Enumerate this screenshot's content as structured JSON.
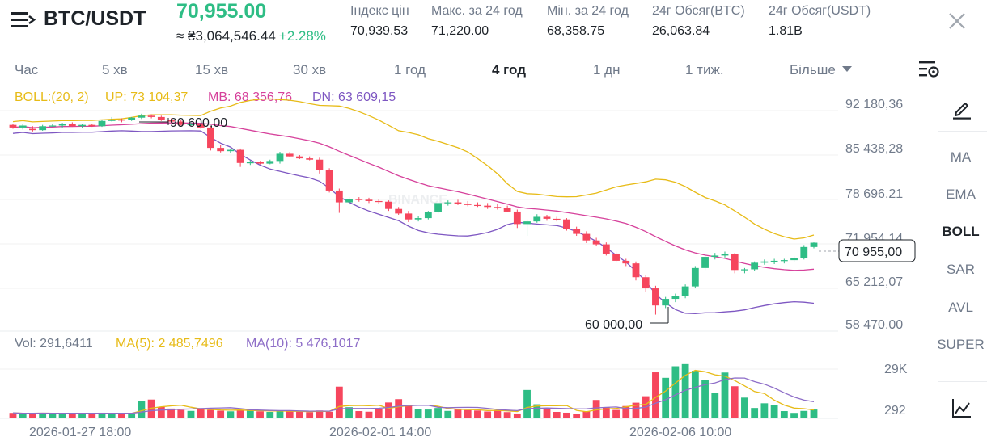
{
  "header": {
    "pair": "BTC/USDT",
    "last_price": "70,955.00",
    "fiat_price": "≈ ₴3,064,546.44",
    "change_pct": "+2.28%",
    "stats": [
      {
        "label": "Індекс цін",
        "value": "70,939.53"
      },
      {
        "label": "Макс. за 24 год",
        "value": "71,220.00"
      },
      {
        "label": "Мін. за 24 год",
        "value": "68,358.75"
      },
      {
        "label": "24г Обсяг(BTC)",
        "value": "26,063.84"
      },
      {
        "label": "24г Обсяг(USDT)",
        "value": "1.81B"
      }
    ]
  },
  "timeframes": [
    {
      "label": "Час",
      "active": false
    },
    {
      "label": "5 хв",
      "active": false
    },
    {
      "label": "15 хв",
      "active": false
    },
    {
      "label": "30 хв",
      "active": false
    },
    {
      "label": "1 год",
      "active": false
    },
    {
      "label": "4 год",
      "active": true
    },
    {
      "label": "1 дн",
      "active": false
    },
    {
      "label": "1 тиж.",
      "active": false
    }
  ],
  "more_label": "Більше",
  "indicators": [
    {
      "label": "MA",
      "active": false
    },
    {
      "label": "EMA",
      "active": false
    },
    {
      "label": "BOLL",
      "active": true
    },
    {
      "label": "SAR",
      "active": false
    },
    {
      "label": "AVL",
      "active": false
    },
    {
      "label": "SUPER",
      "active": false
    }
  ],
  "boll_legend": {
    "title": "BOLL:(20, 2)",
    "up": "UP: 73 104,37",
    "mb": "MB: 68 356,76",
    "dn": "DN: 63 609,15"
  },
  "vol_legend": {
    "vol": "Vol: 291,6411",
    "ma5": "MA(5): 2 485,7496",
    "ma10": "MA(10): 5 476,1017"
  },
  "price_axis": [
    "92 180,36",
    "85 438,28",
    "78 696,21",
    "71 954,14",
    "65 212,07",
    "58 470,00"
  ],
  "volume_axis": [
    "29K",
    "292"
  ],
  "time_axis": [
    "2026-01-27 18:00",
    "2026-02-01 14:00",
    "2026-02-06 10:00"
  ],
  "current_price_tag": "70 955,00",
  "high_marker": "90 600,00",
  "low_marker": "60 000,00",
  "watermark": "BINANCE",
  "colors": {
    "up": "#2ebd85",
    "down": "#f6465d",
    "boll_up": "#e7bb17",
    "boll_mb": "#d6419b",
    "boll_dn": "#7e57c2",
    "ma5": "#e7bb17",
    "ma10": "#8e6ec8"
  },
  "chart_data": {
    "type": "candlestick",
    "timeframe": "4 год",
    "price_range": [
      58470,
      92180.36
    ],
    "candles": [
      [
        88900,
        89100,
        88300,
        88500
      ],
      [
        88500,
        89000,
        88200,
        88800
      ],
      [
        88300,
        88700,
        87900,
        88100
      ],
      [
        88100,
        88900,
        88000,
        88700
      ],
      [
        88700,
        89100,
        88600,
        88800
      ],
      [
        88800,
        89200,
        88500,
        89000
      ],
      [
        89000,
        89300,
        88600,
        88700
      ],
      [
        88700,
        89000,
        88500,
        88900
      ],
      [
        88900,
        89100,
        88600,
        88700
      ],
      [
        88700,
        89700,
        88600,
        89500
      ],
      [
        89500,
        90100,
        89400,
        89700
      ],
      [
        89700,
        89900,
        89300,
        89600
      ],
      [
        89600,
        90100,
        89500,
        90000
      ],
      [
        90000,
        90600,
        89800,
        90300
      ],
      [
        90300,
        90500,
        89900,
        90100
      ],
      [
        90100,
        90300,
        89500,
        89700
      ],
      [
        89700,
        89900,
        89200,
        89400
      ],
      [
        89400,
        89600,
        88800,
        88900
      ],
      [
        88900,
        89300,
        88700,
        89000
      ],
      [
        89000,
        89200,
        88300,
        88500
      ],
      [
        88500,
        88700,
        85000,
        85400
      ],
      [
        85400,
        85800,
        84700,
        84900
      ],
      [
        84900,
        85300,
        84600,
        85100
      ],
      [
        85100,
        85300,
        82500,
        83100
      ],
      [
        83100,
        83500,
        82800,
        83200
      ],
      [
        83200,
        83400,
        82900,
        83000
      ],
      [
        83000,
        83600,
        82900,
        83400
      ],
      [
        83400,
        84800,
        83000,
        84500
      ],
      [
        84500,
        84800,
        84000,
        84100
      ],
      [
        84100,
        84300,
        83700,
        83800
      ],
      [
        83800,
        84100,
        83500,
        83600
      ],
      [
        83600,
        83900,
        81500,
        82000
      ],
      [
        82000,
        82300,
        78600,
        78900
      ],
      [
        78900,
        79200,
        75500,
        77100
      ],
      [
        77100,
        77900,
        76700,
        77600
      ],
      [
        77600,
        77900,
        77200,
        77500
      ],
      [
        77500,
        77800,
        77000,
        77300
      ],
      [
        77300,
        77600,
        76900,
        77200
      ],
      [
        77200,
        77400,
        75800,
        76100
      ],
      [
        76100,
        76400,
        75200,
        75400
      ],
      [
        75400,
        75800,
        74100,
        74500
      ],
      [
        74500,
        75000,
        74200,
        74700
      ],
      [
        74700,
        75800,
        74500,
        75600
      ],
      [
        75600,
        77200,
        75400,
        77000
      ],
      [
        77000,
        77400,
        76600,
        77100
      ],
      [
        77100,
        77500,
        76700,
        76900
      ],
      [
        76900,
        77300,
        76500,
        76700
      ],
      [
        76700,
        77100,
        76400,
        76600
      ],
      [
        76600,
        77000,
        76100,
        76400
      ],
      [
        76400,
        76800,
        76000,
        76300
      ],
      [
        76300,
        76600,
        75600,
        75700
      ],
      [
        75700,
        76000,
        73200,
        73800
      ],
      [
        73800,
        74500,
        72000,
        74200
      ],
      [
        74200,
        75300,
        74000,
        74900
      ],
      [
        74900,
        75200,
        74300,
        74600
      ],
      [
        74600,
        74900,
        74200,
        74500
      ],
      [
        74500,
        74700,
        72800,
        73100
      ],
      [
        73100,
        73400,
        72000,
        72300
      ],
      [
        72300,
        72700,
        70900,
        71300
      ],
      [
        71300,
        71700,
        70400,
        70700
      ],
      [
        70700,
        71000,
        69000,
        69300
      ],
      [
        69300,
        69600,
        67900,
        68200
      ],
      [
        68200,
        68500,
        67400,
        67800
      ],
      [
        67800,
        68100,
        65200,
        65700
      ],
      [
        65700,
        66000,
        63500,
        64000
      ],
      [
        64000,
        64400,
        60000,
        61400
      ],
      [
        61400,
        62700,
        61000,
        62400
      ],
      [
        62400,
        63200,
        61900,
        62800
      ],
      [
        62800,
        64600,
        62500,
        64300
      ],
      [
        64300,
        67400,
        64000,
        67100
      ],
      [
        67100,
        69100,
        66800,
        68800
      ],
      [
        68800,
        69400,
        68400,
        69000
      ],
      [
        69000,
        69600,
        68700,
        69200
      ],
      [
        69200,
        69400,
        66300,
        66800
      ],
      [
        66800,
        67100,
        66300,
        66900
      ],
      [
        66900,
        68100,
        66600,
        67900
      ],
      [
        67900,
        68400,
        67600,
        68100
      ],
      [
        68100,
        68500,
        67700,
        68200
      ],
      [
        68200,
        68500,
        67800,
        68300
      ],
      [
        68300,
        68900,
        68000,
        68600
      ],
      [
        68600,
        70600,
        68400,
        70300
      ],
      [
        70300,
        71000,
        70100,
        70955
      ]
    ],
    "volume_range": [
      0,
      33000
    ],
    "volumes": [
      2800,
      2500,
      2600,
      2800,
      2500,
      2700,
      2600,
      2400,
      2600,
      2900,
      2300,
      2600,
      2500,
      9000,
      9600,
      5800,
      5000,
      4300,
      3800,
      5200,
      4300,
      3900,
      3600,
      4300,
      4100,
      3600,
      3300,
      3600,
      3800,
      3500,
      3200,
      4000,
      3400,
      16200,
      5700,
      3700,
      3400,
      4600,
      8100,
      9800,
      6500,
      4900,
      4500,
      5300,
      3800,
      4600,
      4200,
      4000,
      3500,
      4200,
      3200,
      2500,
      14500,
      7200,
      4800,
      3300,
      2900,
      2300,
      3700,
      9400,
      5700,
      4300,
      6300,
      8000,
      11300,
      23500,
      20700,
      26600,
      27700,
      24300,
      19700,
      12800,
      23400,
      16400,
      10600,
      5300,
      7700,
      6700,
      3700,
      2800,
      3800,
      4500
    ]
  }
}
